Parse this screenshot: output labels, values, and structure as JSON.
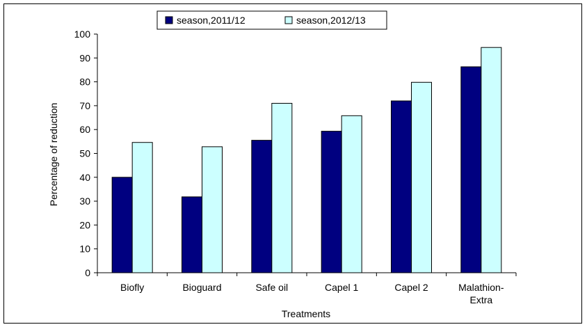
{
  "chart_data": {
    "type": "bar",
    "title": "",
    "xlabel": "Treatments",
    "ylabel": "Percentage of reduction",
    "ylim": [
      0,
      100
    ],
    "yticks": [
      0,
      10,
      20,
      30,
      40,
      50,
      60,
      70,
      80,
      90,
      100
    ],
    "grid": false,
    "legend_position": "top",
    "categories": [
      [
        "Biofly"
      ],
      [
        "Bioguard"
      ],
      [
        "Safe oil"
      ],
      [
        "Capel 1"
      ],
      [
        "Capel 2"
      ],
      [
        "Malathion-",
        "Extra"
      ]
    ],
    "series": [
      {
        "name": "season,2011/12",
        "color": "#000080",
        "values": [
          40,
          31.8,
          55.5,
          59.3,
          72,
          86.3
        ]
      },
      {
        "name": "season,2012/13",
        "color": "#ccffff",
        "values": [
          54.6,
          52.8,
          71,
          65.8,
          79.8,
          94.4
        ]
      }
    ]
  }
}
